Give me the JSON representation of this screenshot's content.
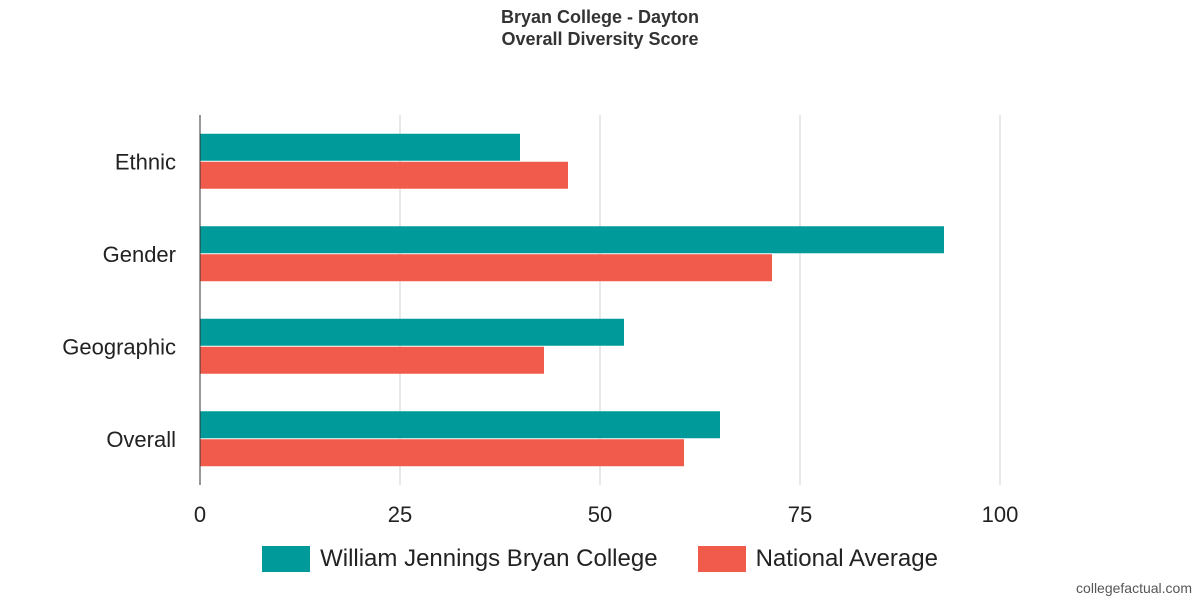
{
  "title": {
    "line1": "Bryan College - Dayton",
    "line2": "Overall Diversity Score"
  },
  "credit": "collegefactual.com",
  "colors": {
    "series1": "#009A9A",
    "series2": "#F05B4C",
    "grid": "#D0D0D0",
    "axis": "#333333",
    "text": "#222222"
  },
  "chart_data": {
    "type": "bar",
    "orientation": "horizontal",
    "categories": [
      "Ethnic",
      "Gender",
      "Geographic",
      "Overall"
    ],
    "series": [
      {
        "name": "William Jennings Bryan College",
        "values": [
          40,
          93,
          53,
          65
        ]
      },
      {
        "name": "National Average",
        "values": [
          46,
          71.5,
          43,
          60.5
        ]
      }
    ],
    "xlim": [
      0,
      100
    ],
    "xticks": [
      0,
      25,
      50,
      75,
      100
    ],
    "xlabel": "",
    "ylabel": "",
    "grid": true,
    "legend": "bottom"
  }
}
